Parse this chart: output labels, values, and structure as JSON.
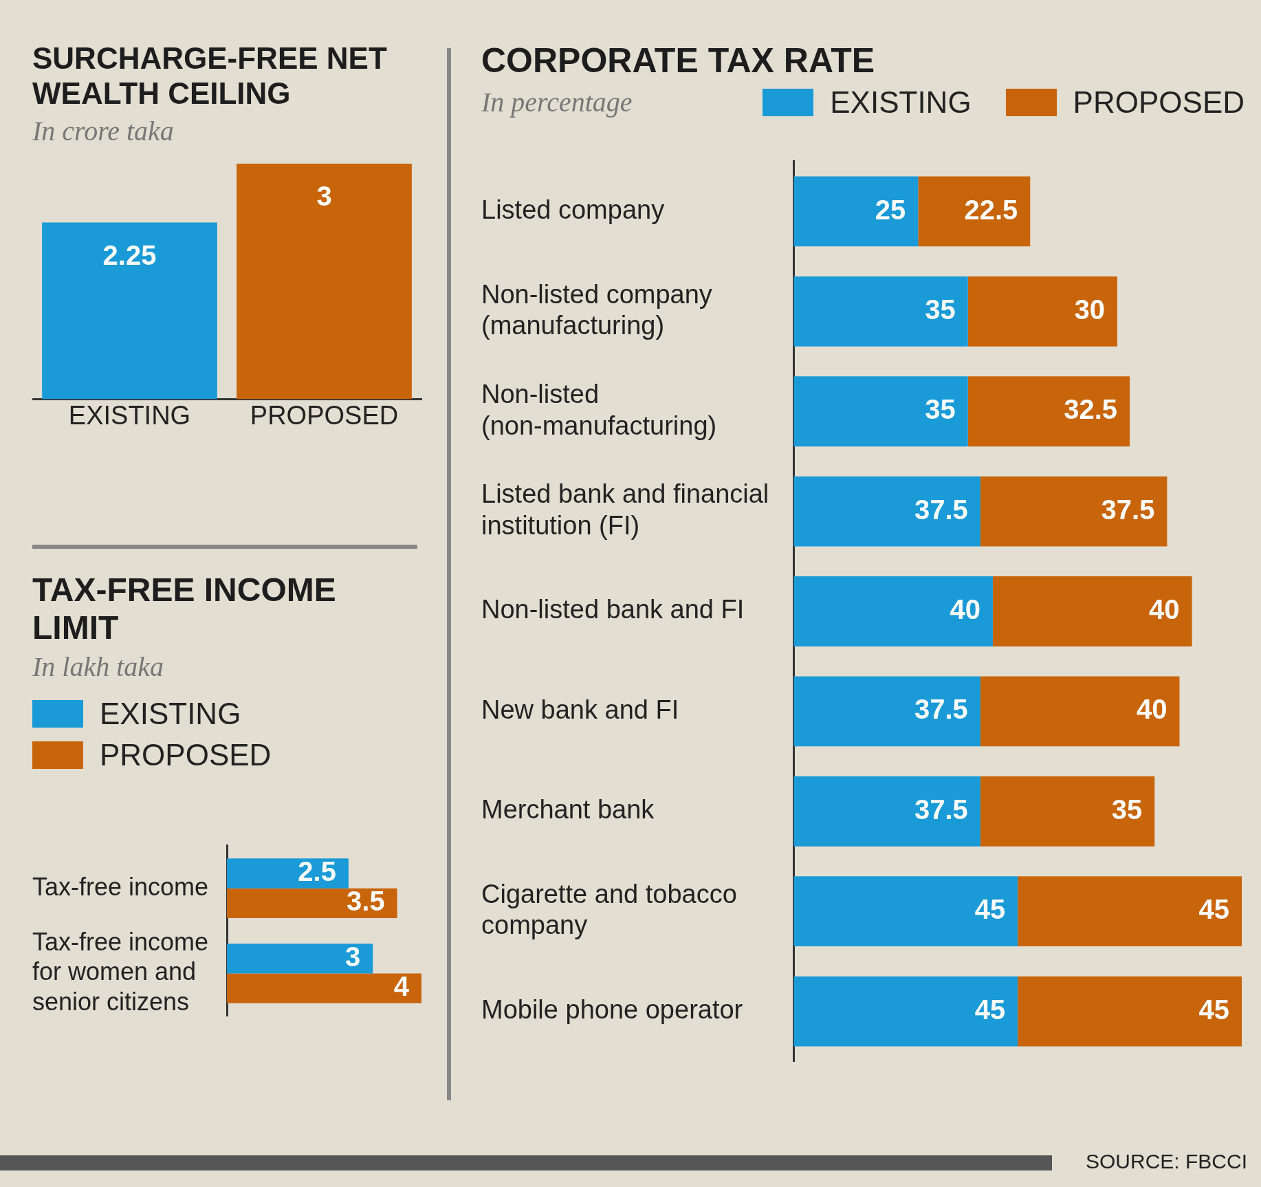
{
  "chart_data": [
    {
      "type": "bar",
      "title": "SURCHARGE-FREE NET WEALTH CEILING",
      "subtitle": "In crore taka",
      "categories": [
        "EXISTING",
        "PROPOSED"
      ],
      "values": [
        2.25,
        3
      ],
      "colors": [
        "#1a9ad6",
        "#c8640a"
      ],
      "data_labels": true,
      "grid": false,
      "legend": false
    },
    {
      "type": "bar",
      "orientation": "horizontal",
      "title": "TAX-FREE INCOME LIMIT",
      "subtitle": "In lakh taka",
      "categories": [
        "Tax-free income",
        "Tax-free income for women and senior citizens"
      ],
      "series": [
        {
          "name": "EXISTING",
          "color": "#1a9ad6",
          "values": [
            2.5,
            3
          ]
        },
        {
          "name": "PROPOSED",
          "color": "#c8640a",
          "values": [
            3.5,
            4
          ]
        }
      ],
      "data_labels": true,
      "grid": false,
      "legend": "top left"
    },
    {
      "type": "bar",
      "orientation": "horizontal",
      "stacked": true,
      "title": "CORPORATE TAX RATE",
      "subtitle": "In percentage",
      "categories": [
        "Listed company",
        "Non-listed company (manufacturing)",
        "Non-listed (non-manufacturing)",
        "Listed bank and financial institution (FI)",
        "Non-listed bank and FI",
        "New bank and FI",
        "Merchant bank",
        "Cigarette and tobacco company",
        "Mobile phone operator"
      ],
      "series": [
        {
          "name": "EXISTING",
          "color": "#1a9ad6",
          "values": [
            25,
            35,
            35,
            37.5,
            40,
            37.5,
            37.5,
            45,
            45
          ]
        },
        {
          "name": "PROPOSED",
          "color": "#c8640a",
          "values": [
            22.5,
            30,
            32.5,
            37.5,
            40,
            40,
            35,
            45,
            45
          ]
        }
      ],
      "data_labels": true,
      "grid": false,
      "legend": "top right",
      "annotations": [
        "SOURCE: FBCCI"
      ]
    }
  ]
}
